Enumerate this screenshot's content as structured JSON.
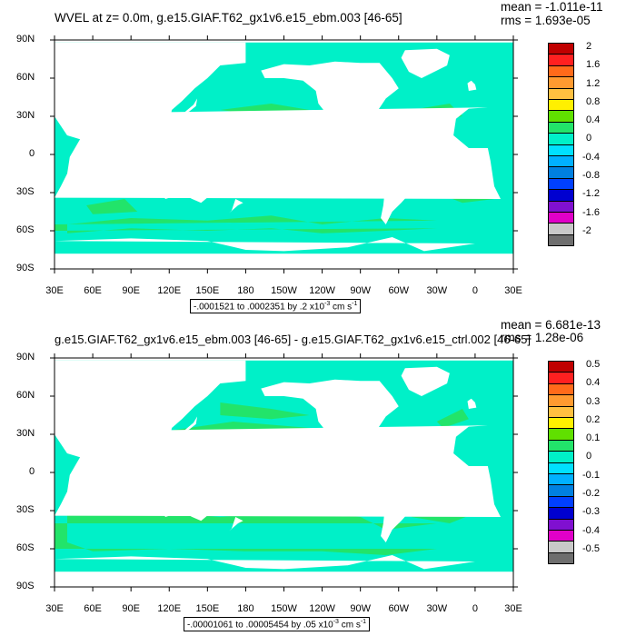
{
  "panels": [
    {
      "title": "WVEL at z=   0.0m, g.e15.GIAF.T62_gx1v6.e15_ebm.003 [46-65]",
      "stats": {
        "mean": "mean = -1.011e-11",
        "rms": "rms = 1.693e-05"
      },
      "info": {
        "text": "-.0001521 to .0002351 by .2 x10",
        "exp": "-3",
        "unit": " cm s",
        "unit_exp": "-1"
      },
      "colorbar_labels": [
        "2",
        "1.6",
        "1.2",
        "0.8",
        "0.4",
        "0",
        "-0.4",
        "-0.8",
        "-1.2",
        "-1.6",
        "-2"
      ],
      "ocean_color": "#00F0C8",
      "patch_color": "#22E46A"
    },
    {
      "title": "g.e15.GIAF.T62_gx1v6.e15_ebm.003 [46-65] - g.e15.GIAF.T62_gx1v6.e15_ctrl.002 [46-65]",
      "stats": {
        "mean": "mean = 6.681e-13",
        "rms": "rms = 1.28e-06"
      },
      "info": {
        "text": "-.00001061 to .00005454 by .05 x10",
        "exp": "-3",
        "unit": " cm s",
        "unit_exp": "-1"
      },
      "colorbar_labels": [
        "0.5",
        "0.4",
        "0.3",
        "0.2",
        "0.1",
        "0",
        "-0.1",
        "-0.2",
        "-0.3",
        "-0.4",
        "-0.5"
      ],
      "ocean_color": "#00F0C8",
      "patch_color": "#22E46A"
    }
  ],
  "axes": {
    "y_labels": [
      "90N",
      "60N",
      "30N",
      "0",
      "30S",
      "60S",
      "90S"
    ],
    "x_labels": [
      "30E",
      "60E",
      "90E",
      "120E",
      "150E",
      "180",
      "150W",
      "120W",
      "90W",
      "60W",
      "30W",
      "0",
      "30E"
    ]
  },
  "colorbar_colors": [
    "#C00000",
    "#FF2020",
    "#FF6A1A",
    "#FF9A30",
    "#FFC040",
    "#FFF000",
    "#60E000",
    "#22E46A",
    "#00F0C8",
    "#00E0FF",
    "#00B0FF",
    "#0080E0",
    "#0040FF",
    "#0000D0",
    "#8010D0",
    "#E000C8",
    "#C8C8C8",
    "#6E6E6E"
  ],
  "land_color": "#FFFFFF"
}
